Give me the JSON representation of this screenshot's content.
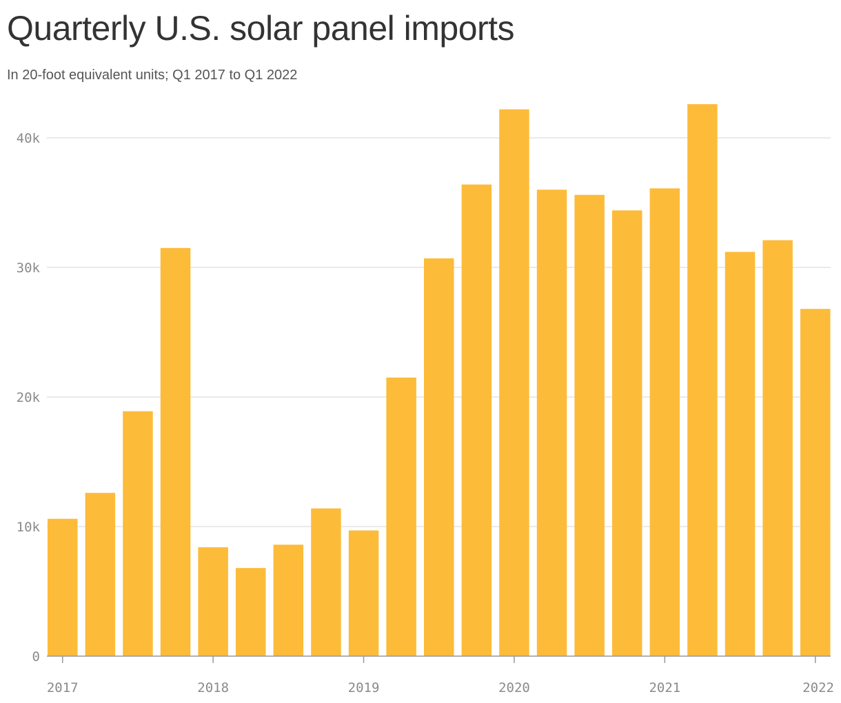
{
  "header": {
    "title": "Quarterly U.S. solar panel imports",
    "subtitle": "In 20-foot equivalent units; Q1 2017 to Q1 2022"
  },
  "colors": {
    "bar": "#FDBB3A",
    "grid": "#E3E3E3",
    "axis": "#999999",
    "tick_text": "#8A8A8A"
  },
  "chart_data": {
    "type": "bar",
    "categories": [
      "Q1 2017",
      "Q2 2017",
      "Q3 2017",
      "Q4 2017",
      "Q1 2018",
      "Q2 2018",
      "Q3 2018",
      "Q4 2018",
      "Q1 2019",
      "Q2 2019",
      "Q3 2019",
      "Q4 2019",
      "Q1 2020",
      "Q2 2020",
      "Q3 2020",
      "Q4 2020",
      "Q1 2021",
      "Q2 2021",
      "Q3 2021",
      "Q4 2021",
      "Q1 2022"
    ],
    "values": [
      10600,
      12600,
      18900,
      31500,
      8400,
      6800,
      8600,
      11400,
      9700,
      21500,
      30700,
      36400,
      42200,
      36000,
      35600,
      34400,
      36100,
      42600,
      31200,
      32100,
      26800
    ],
    "ylim": [
      0,
      45000
    ],
    "y_ticks": [
      {
        "value": 0,
        "label": "0"
      },
      {
        "value": 10000,
        "label": "10k"
      },
      {
        "value": 20000,
        "label": "20k"
      },
      {
        "value": 30000,
        "label": "30k"
      },
      {
        "value": 40000,
        "label": "40k"
      }
    ],
    "x_ticks": [
      {
        "index": 0,
        "label": "2017"
      },
      {
        "index": 4,
        "label": "2018"
      },
      {
        "index": 8,
        "label": "2019"
      },
      {
        "index": 12,
        "label": "2020"
      },
      {
        "index": 16,
        "label": "2021"
      },
      {
        "index": 20,
        "label": "2022"
      }
    ],
    "grid": true,
    "legend": "none"
  }
}
